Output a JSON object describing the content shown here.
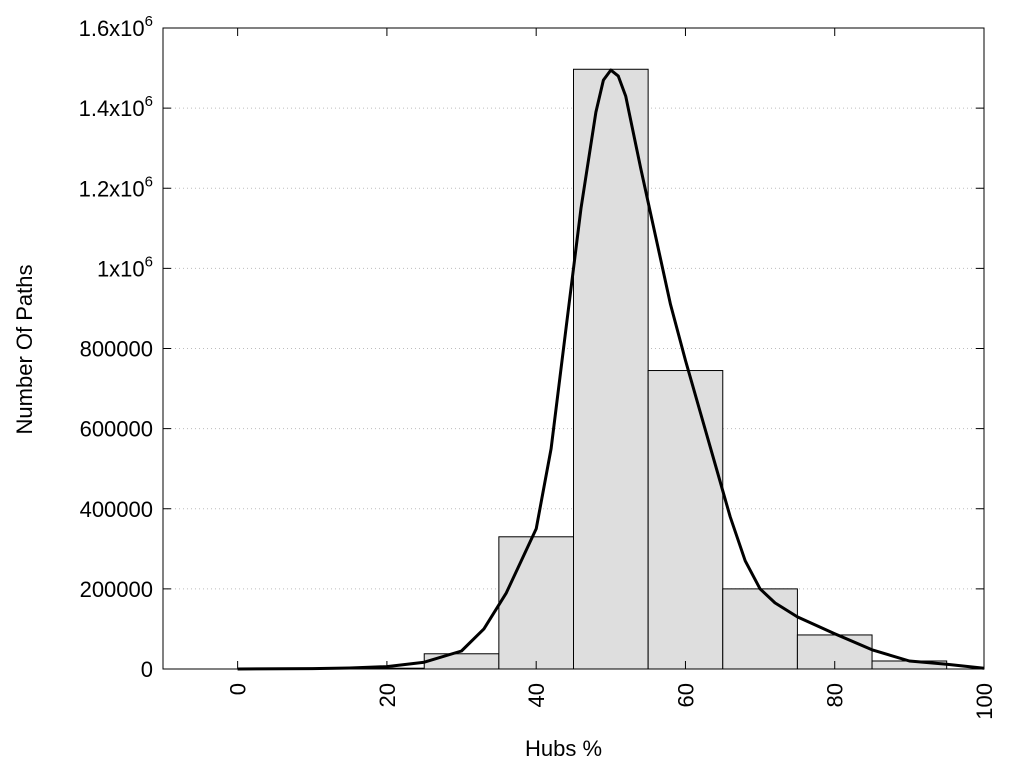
{
  "chart_data": {
    "type": "bar",
    "xlabel": "Hubs %",
    "ylabel": "Number Of Paths",
    "xlim": [
      -10,
      100
    ],
    "ylim": [
      0,
      1600000
    ],
    "grid": true,
    "x_ticks": [
      0,
      20,
      40,
      60,
      80,
      100
    ],
    "x_tick_labels": [
      "0",
      "20",
      "40",
      "60",
      "80",
      "100"
    ],
    "y_ticks": [
      {
        "value": 0,
        "base": "0",
        "exp": ""
      },
      {
        "value": 200000,
        "base": "200000",
        "exp": ""
      },
      {
        "value": 400000,
        "base": "400000",
        "exp": ""
      },
      {
        "value": 600000,
        "base": "600000",
        "exp": ""
      },
      {
        "value": 800000,
        "base": "800000",
        "exp": ""
      },
      {
        "value": 1000000,
        "base": "1x10",
        "exp": "6"
      },
      {
        "value": 1200000,
        "base": "1.2x10",
        "exp": "6"
      },
      {
        "value": 1400000,
        "base": "1.4x10",
        "exp": "6"
      },
      {
        "value": 1600000,
        "base": "1.6x10",
        "exp": "6"
      }
    ],
    "bin_width": 10,
    "bins": [
      {
        "center": 0,
        "value": 0
      },
      {
        "center": 10,
        "value": 0
      },
      {
        "center": 20,
        "value": 2000
      },
      {
        "center": 30,
        "value": 38000
      },
      {
        "center": 40,
        "value": 330000
      },
      {
        "center": 50,
        "value": 1497000
      },
      {
        "center": 60,
        "value": 745000
      },
      {
        "center": 70,
        "value": 200000
      },
      {
        "center": 80,
        "value": 85000
      },
      {
        "center": 90,
        "value": 20000
      }
    ],
    "fit_curve": {
      "x": [
        0,
        10,
        15,
        20,
        25,
        30,
        33,
        36,
        38,
        40,
        42,
        44,
        46,
        48,
        49,
        50,
        51,
        52,
        54,
        56,
        58,
        60,
        62,
        64,
        66,
        68,
        70,
        72,
        75,
        80,
        85,
        90,
        95,
        100
      ],
      "y": [
        0,
        1000,
        2500,
        6000,
        17000,
        45000,
        100000,
        190000,
        270000,
        350000,
        550000,
        850000,
        1150000,
        1390000,
        1470000,
        1495000,
        1480000,
        1430000,
        1250000,
        1080000,
        910000,
        770000,
        640000,
        510000,
        380000,
        270000,
        200000,
        165000,
        130000,
        88000,
        48000,
        20000,
        12000,
        2000
      ]
    }
  }
}
